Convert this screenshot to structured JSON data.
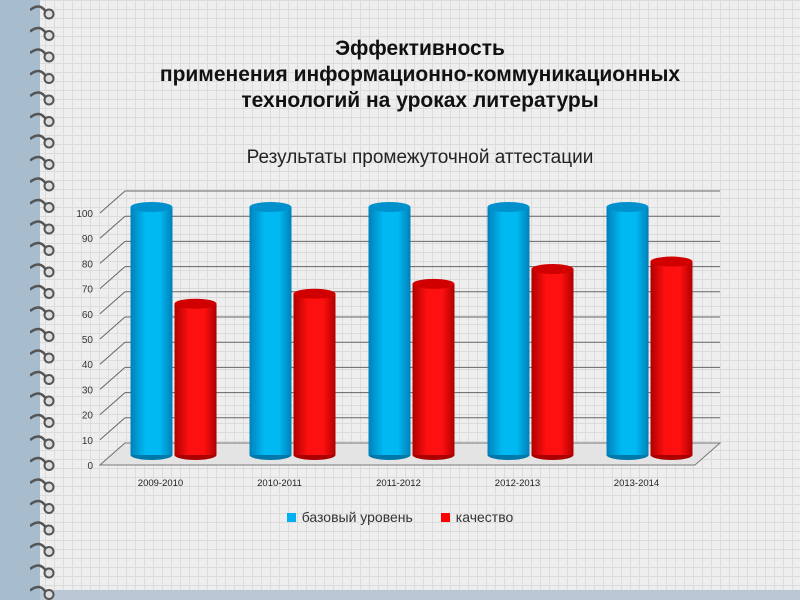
{
  "title": [
    "Эффективность",
    "применения информационно-коммуникационных",
    "технологий на уроках  литературы"
  ],
  "chart_data": {
    "type": "bar",
    "title": "Результаты промежуточной аттестации",
    "categories": [
      "2009-2010",
      "2010-2011",
      "2011-2012",
      "2012-2013",
      "2013-2014"
    ],
    "series": [
      {
        "name": "базовый уровень",
        "color": "#00b0f0",
        "values": [
          100,
          100,
          100,
          100,
          100
        ]
      },
      {
        "name": "качество",
        "color": "#ff0000",
        "values": [
          61,
          65,
          69,
          75,
          78
        ]
      }
    ],
    "ylim": [
      0,
      100
    ],
    "yticks": [
      "0",
      "10",
      "20",
      "30",
      "40",
      "50",
      "60",
      "70",
      "80",
      "90",
      "100"
    ],
    "grid": true,
    "legend": "bottom"
  }
}
